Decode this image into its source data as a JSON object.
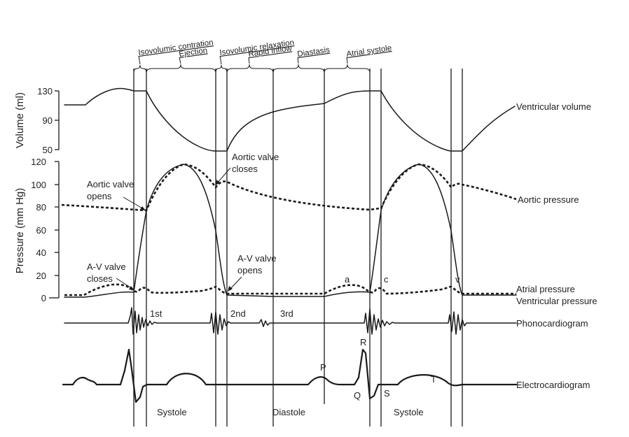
{
  "phases": [
    {
      "id": "isovolumic-contraction",
      "label": "Isovolumic contration"
    },
    {
      "id": "ejection",
      "label": "Ejection"
    },
    {
      "id": "isovolumic-relaxation",
      "label": "Isovolumic relaxation"
    },
    {
      "id": "rapid-inflow",
      "label": "Rapid inflow"
    },
    {
      "id": "diastasis",
      "label": "Diastasis"
    },
    {
      "id": "atrial-systole",
      "label": "Atrial systole"
    }
  ],
  "volume_axis": {
    "title": "Volume (ml)",
    "ticks": [
      "130",
      "90",
      "50"
    ]
  },
  "pressure_axis": {
    "title": "Pressure (mm Hg)",
    "ticks": [
      "120",
      "100",
      "80",
      "60",
      "40",
      "20",
      "0"
    ]
  },
  "traces": {
    "ventricular_volume": "Ventricular volume",
    "aortic_pressure": "Aortic pressure",
    "atrial_pressure": "Atrial pressure",
    "ventricular_pressure": "Ventricular pressure",
    "phonocardiogram": "Phonocardiogram",
    "electrocardiogram": "Electrocardiogram"
  },
  "annotations": {
    "aortic_valve_closes": [
      "Aortic valve",
      "closes"
    ],
    "aortic_valve_opens": [
      "Aortic valve",
      "opens"
    ],
    "av_valve_opens": [
      "A-V valve",
      "opens"
    ],
    "av_valve_closes": [
      "A-V valve",
      "closes"
    ]
  },
  "wave_markers": {
    "a": "a",
    "c": "c",
    "v": "v"
  },
  "heart_sounds": {
    "first": "1st",
    "second": "2nd",
    "third": "3rd"
  },
  "ecg_waves": {
    "P": "P",
    "Q": "Q",
    "R": "R",
    "S": "S",
    "T": "T"
  },
  "cycle_labels": {
    "systole_1": "Systole",
    "diastole": "Diastole",
    "systole_2": "Systole"
  }
}
